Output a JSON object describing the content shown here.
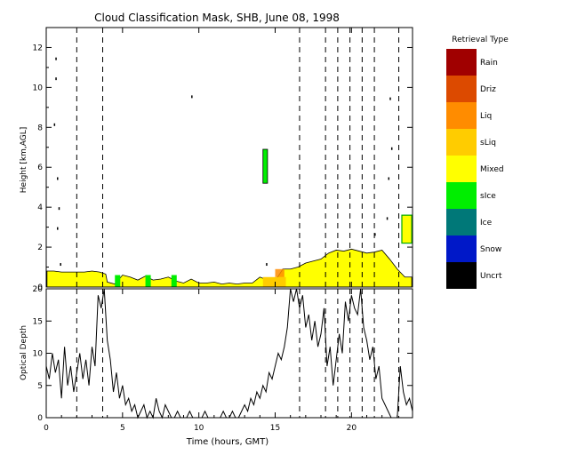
{
  "chart_data": [
    {
      "type": "heatmap",
      "title": "Cloud Classification Mask, SHB, June 08, 1998",
      "ylabel": "Height [km,AGL]",
      "xlim": [
        0,
        24
      ],
      "ylim": [
        0,
        13
      ],
      "y_ticks": [
        0,
        2,
        4,
        6,
        8,
        10,
        12
      ],
      "x_ticks": [
        0,
        5,
        10,
        15,
        20
      ],
      "legend_title": "Retrieval Type",
      "legend_placement": "right",
      "legend": [
        {
          "label": "Rain",
          "color": "#a00000"
        },
        {
          "label": "Driz",
          "color": "#dc4a00"
        },
        {
          "label": "Liq",
          "color": "#ff8c00"
        },
        {
          "label": "sLiq",
          "color": "#ffcc00"
        },
        {
          "label": "Mixed",
          "color": "#ffff00"
        },
        {
          "label": "sIce",
          "color": "#00ee00"
        },
        {
          "label": "Ice",
          "color": "#007878"
        },
        {
          "label": "Snow",
          "color": "#0018c8"
        },
        {
          "label": "Uncrt",
          "color": "#000000"
        }
      ],
      "event_times": [
        2.0,
        3.7,
        16.6,
        18.3,
        19.1,
        19.9,
        20.7,
        21.5,
        23.1
      ],
      "low_cloud_top": {
        "x": [
          0.05,
          0.5,
          1.0,
          1.5,
          2.0,
          2.5,
          3.0,
          3.5,
          3.9,
          4.0,
          4.5,
          5.0,
          5.5,
          6.0,
          6.5,
          7.0,
          7.5,
          8.0,
          8.5,
          9.0,
          9.5,
          10.0,
          10.5,
          11.0,
          11.5,
          12.0,
          12.5,
          13.0,
          13.5,
          14.0,
          14.5,
          15.0,
          15.5,
          16.0,
          16.5,
          17.0,
          17.5,
          18.0,
          18.5,
          19.0,
          19.5,
          20.0,
          20.5,
          21.0,
          21.5,
          22.0,
          22.5,
          23.0,
          23.5,
          23.95
        ],
        "top": [
          0.8,
          0.8,
          0.75,
          0.75,
          0.75,
          0.75,
          0.8,
          0.75,
          0.65,
          0.25,
          0.15,
          0.6,
          0.5,
          0.35,
          0.55,
          0.35,
          0.4,
          0.5,
          0.3,
          0.2,
          0.4,
          0.2,
          0.2,
          0.25,
          0.15,
          0.2,
          0.15,
          0.2,
          0.2,
          0.5,
          0.35,
          0.3,
          0.9,
          0.9,
          1.0,
          1.2,
          1.3,
          1.4,
          1.7,
          1.85,
          1.8,
          1.9,
          1.8,
          1.7,
          1.75,
          1.85,
          1.4,
          0.9,
          0.5,
          0.5
        ]
      },
      "ice_feature": {
        "x": [
          14.2,
          14.5
        ],
        "ylim": [
          5.2,
          6.9
        ]
      },
      "right_edge_feature": {
        "x": [
          23.3,
          23.95
        ],
        "ylim": [
          2.2,
          3.6
        ]
      }
    },
    {
      "type": "line",
      "xlabel": "Time (hours, GMT)",
      "ylabel": "Optical Depth",
      "xlim": [
        0,
        24
      ],
      "ylim": [
        0,
        20
      ],
      "y_ticks": [
        0,
        5,
        10,
        15,
        20
      ],
      "x_ticks": [
        0,
        5,
        10,
        15,
        20
      ],
      "series": [
        {
          "x": [
            0.0,
            0.2,
            0.4,
            0.6,
            0.8,
            1.0,
            1.2,
            1.4,
            1.6,
            1.8,
            2.0,
            2.2,
            2.4,
            2.6,
            2.8,
            3.0,
            3.2,
            3.4,
            3.6,
            3.8,
            4.0,
            4.2,
            4.4,
            4.6,
            4.8,
            5.0,
            5.2,
            5.4,
            5.6,
            5.8,
            6.0,
            6.2,
            6.4,
            6.6,
            6.8,
            7.0,
            7.2,
            7.4,
            7.6,
            7.8,
            8.0,
            8.2,
            8.4,
            8.6,
            8.8,
            9.0,
            9.2,
            9.4,
            9.6,
            9.8,
            10.0,
            10.2,
            10.4,
            10.6,
            10.8,
            11.0,
            11.2,
            11.4,
            11.6,
            11.8,
            12.0,
            12.2,
            12.4,
            12.6,
            12.8,
            13.0,
            13.2,
            13.4,
            13.6,
            13.8,
            14.0,
            14.2,
            14.4,
            14.6,
            14.8,
            15.0,
            15.2,
            15.4,
            15.6,
            15.8,
            16.0,
            16.2,
            16.4,
            16.6,
            16.8,
            17.0,
            17.2,
            17.4,
            17.6,
            17.8,
            18.0,
            18.2,
            18.4,
            18.6,
            18.8,
            19.0,
            19.2,
            19.4,
            19.6,
            19.8,
            20.0,
            20.2,
            20.4,
            20.6,
            20.8,
            21.0,
            21.2,
            21.4,
            21.6,
            21.8,
            22.0,
            22.2,
            22.4,
            22.6,
            22.8,
            23.0,
            23.2,
            23.4,
            23.6,
            23.8,
            24.0
          ],
          "values": [
            8,
            6,
            10,
            7,
            9,
            3,
            11,
            5,
            8,
            4,
            7,
            10,
            6,
            9,
            5,
            11,
            8,
            19,
            17,
            20,
            12,
            9,
            4,
            7,
            3,
            5,
            2,
            3,
            1,
            2,
            0,
            1,
            2,
            0,
            1,
            0,
            3,
            1,
            0,
            2,
            1,
            0,
            0,
            1,
            0,
            0,
            0,
            1,
            0,
            0,
            0,
            0,
            1,
            0,
            0,
            0,
            0,
            0,
            1,
            0,
            0,
            1,
            0,
            0,
            1,
            2,
            1,
            3,
            2,
            4,
            3,
            5,
            4,
            7,
            6,
            8,
            10,
            9,
            11,
            14,
            20,
            18,
            20,
            17,
            19,
            14,
            16,
            12,
            15,
            11,
            13,
            17,
            8,
            11,
            5,
            9,
            13,
            10,
            18,
            15,
            19,
            17,
            16,
            20,
            14,
            12,
            9,
            11,
            6,
            8,
            3,
            2,
            1,
            0,
            0,
            0,
            8,
            4,
            2,
            3,
            1
          ]
        }
      ]
    }
  ]
}
